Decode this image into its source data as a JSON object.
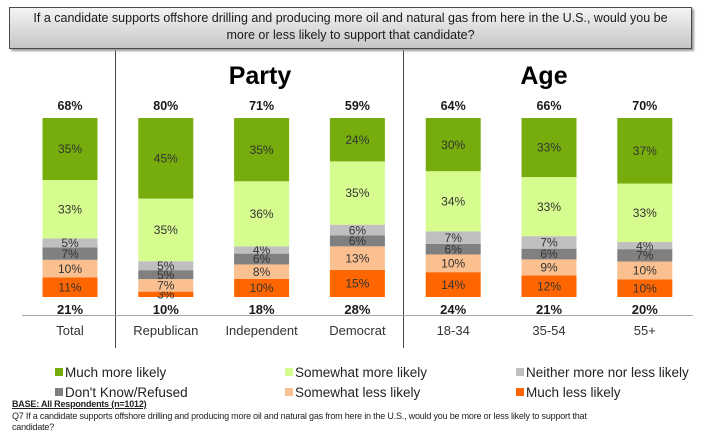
{
  "header": {
    "title_lines": [
      "If a candidate supports offshore drilling and producing more oil and natural gas from here in the U.S., would you be",
      "more or less likely to support that candidate?"
    ]
  },
  "chart_data": {
    "type": "bar",
    "stacked": true,
    "title": "If a candidate supports offshore drilling and producing more oil and natural gas from here in the U.S., would you be more or less likely to support that candidate?",
    "categories": [
      "Total",
      "Republican",
      "Independent",
      "Democrat",
      "18-34",
      "35-54",
      "55+"
    ],
    "groups": [
      {
        "label": "Party",
        "categories": [
          "Republican",
          "Independent",
          "Democrat"
        ]
      },
      {
        "label": "Age",
        "categories": [
          "18-34",
          "35-54",
          "55+"
        ]
      }
    ],
    "series": [
      {
        "name": "Much less likely",
        "color": "#FF6600",
        "values": [
          11,
          3,
          10,
          15,
          14,
          12,
          10
        ]
      },
      {
        "name": "Somewhat less likely",
        "color": "#FAC090",
        "values": [
          10,
          7,
          8,
          13,
          10,
          9,
          10
        ]
      },
      {
        "name": "Don't Know/Refused",
        "color": "#808080",
        "values": [
          7,
          5,
          6,
          6,
          6,
          6,
          7
        ]
      },
      {
        "name": "Neither more nor less likely",
        "color": "#BFBFBF",
        "values": [
          5,
          5,
          4,
          6,
          7,
          7,
          4
        ]
      },
      {
        "name": "Somewhat more likely",
        "color": "#D6FB8E",
        "values": [
          33,
          35,
          36,
          35,
          34,
          33,
          33
        ]
      },
      {
        "name": "Much more likely",
        "color": "#76AC0C",
        "values": [
          35,
          45,
          35,
          24,
          30,
          33,
          37
        ]
      }
    ],
    "net_more_likely": [
      "68%",
      "80%",
      "71%",
      "59%",
      "64%",
      "66%",
      "70%"
    ],
    "net_less_likely": [
      "21%",
      "10%",
      "18%",
      "28%",
      "24%",
      "21%",
      "20%"
    ],
    "value_suffix": "%",
    "ylim": [
      0,
      100
    ],
    "xlabel": "",
    "ylabel": "",
    "grid": false,
    "legend_position": "bottom",
    "legend_order": [
      "Much more likely",
      "Somewhat more likely",
      "Neither more nor less likely",
      "Don't Know/Refused",
      "Somewhat less likely",
      "Much less likely"
    ]
  },
  "footer": {
    "base": "BASE: All Respondents (n=1012)",
    "question_lines": [
      "Q7 If a candidate supports offshore drilling and producing more oil and natural gas from here in the U.S., would you be more or less likely to support that",
      "candidate?"
    ]
  }
}
